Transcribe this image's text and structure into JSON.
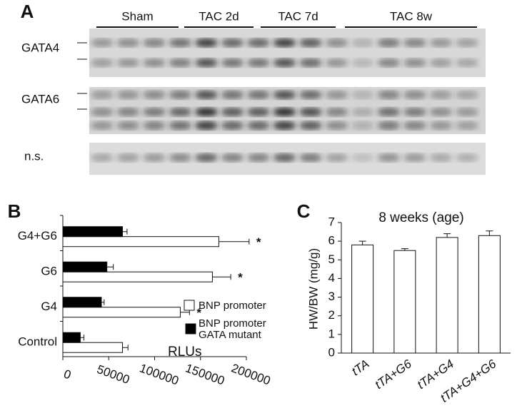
{
  "panel_a": {
    "label": "A",
    "groups": [
      "Sham",
      "TAC 2d",
      "TAC 7d",
      "TAC 8w"
    ],
    "rows": [
      "GATA4",
      "GATA6",
      "n.s."
    ]
  },
  "chart_data": [
    {
      "type": "hbar",
      "panel_label": "B",
      "xlabel": "RLUs",
      "categories": [
        "G4+G6",
        "G6",
        "G4",
        "Control"
      ],
      "series": [
        {
          "name": "BNP promoter",
          "color": "#ffffff",
          "values": [
            170000,
            163000,
            128000,
            65000
          ],
          "errors": [
            33000,
            20000,
            10000,
            6000
          ]
        },
        {
          "name": "BNP promoter GATA mutant",
          "color": "#000000",
          "values": [
            65000,
            48000,
            42000,
            19000
          ],
          "errors": [
            5000,
            7000,
            3000,
            4000
          ]
        }
      ],
      "significance": [
        "*",
        "*",
        "*",
        null
      ],
      "xlim": [
        0,
        200000
      ],
      "xticks": [
        0,
        50000,
        100000,
        150000,
        200000
      ]
    },
    {
      "type": "bar",
      "panel_label": "C",
      "title": "8 weeks (age)",
      "ylabel": "HW/BW (mg/g)",
      "categories": [
        "tTA",
        "tTA+G6",
        "tTA+G4",
        "tTA+G4+G6"
      ],
      "values": [
        5.8,
        5.5,
        6.2,
        6.3
      ],
      "errors": [
        0.2,
        0.1,
        0.2,
        0.25
      ],
      "color": "#ffffff",
      "ylim": [
        0,
        7
      ],
      "yticks": [
        0,
        1,
        2,
        3,
        4,
        5,
        6,
        7
      ]
    }
  ]
}
